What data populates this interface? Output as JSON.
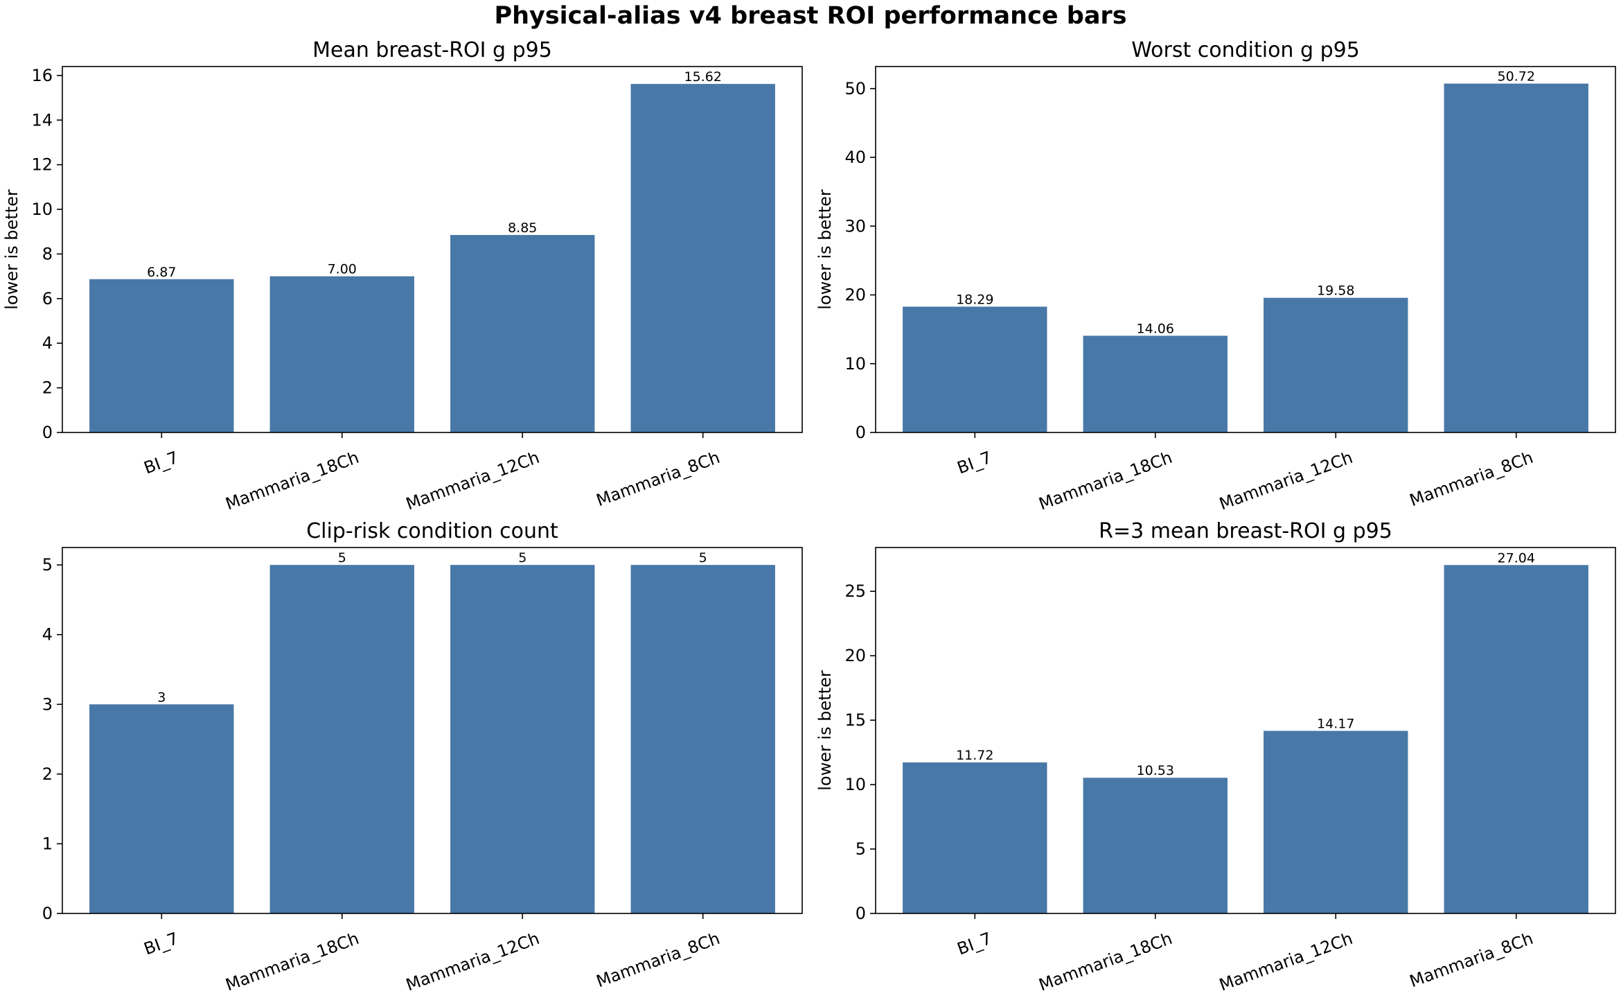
{
  "figure": {
    "title": "Physical-alias v4 breast ROI performance bars",
    "bar_color": "#4878a8"
  },
  "chart_data": [
    {
      "type": "bar",
      "title": "Mean breast-ROI g p95",
      "ylabel": "lower is better",
      "categories": [
        "BI_7",
        "Mammaria_18Ch",
        "Mammaria_12Ch",
        "Mammaria_8Ch"
      ],
      "values": [
        6.87,
        7.0,
        8.85,
        15.62
      ],
      "value_labels": [
        "6.87",
        "7.00",
        "8.85",
        "15.62"
      ],
      "ylim": [
        0,
        16.4
      ],
      "yticks": [
        0,
        2,
        4,
        6,
        8,
        10,
        12,
        14,
        16
      ],
      "grid": false
    },
    {
      "type": "bar",
      "title": "Worst condition g p95",
      "ylabel": "lower is better",
      "categories": [
        "BI_7",
        "Mammaria_18Ch",
        "Mammaria_12Ch",
        "Mammaria_8Ch"
      ],
      "values": [
        18.29,
        14.06,
        19.58,
        50.72
      ],
      "value_labels": [
        "18.29",
        "14.06",
        "19.58",
        "50.72"
      ],
      "ylim": [
        0,
        53.2
      ],
      "yticks": [
        0,
        10,
        20,
        30,
        40,
        50
      ],
      "grid": false
    },
    {
      "type": "bar",
      "title": "Clip-risk condition count",
      "ylabel": "",
      "categories": [
        "BI_7",
        "Mammaria_18Ch",
        "Mammaria_12Ch",
        "Mammaria_8Ch"
      ],
      "values": [
        3,
        5,
        5,
        5
      ],
      "value_labels": [
        "3",
        "5",
        "5",
        "5"
      ],
      "ylim": [
        0,
        5.25
      ],
      "yticks": [
        0,
        1,
        2,
        3,
        4,
        5
      ],
      "grid": false
    },
    {
      "type": "bar",
      "title": "R=3 mean breast-ROI g p95",
      "ylabel": "lower is better",
      "categories": [
        "BI_7",
        "Mammaria_18Ch",
        "Mammaria_12Ch",
        "Mammaria_8Ch"
      ],
      "values": [
        11.72,
        10.53,
        14.17,
        27.04
      ],
      "value_labels": [
        "11.72",
        "10.53",
        "14.17",
        "27.04"
      ],
      "ylim": [
        0,
        28.4
      ],
      "yticks": [
        0,
        5,
        10,
        15,
        20,
        25
      ],
      "grid": false
    }
  ]
}
